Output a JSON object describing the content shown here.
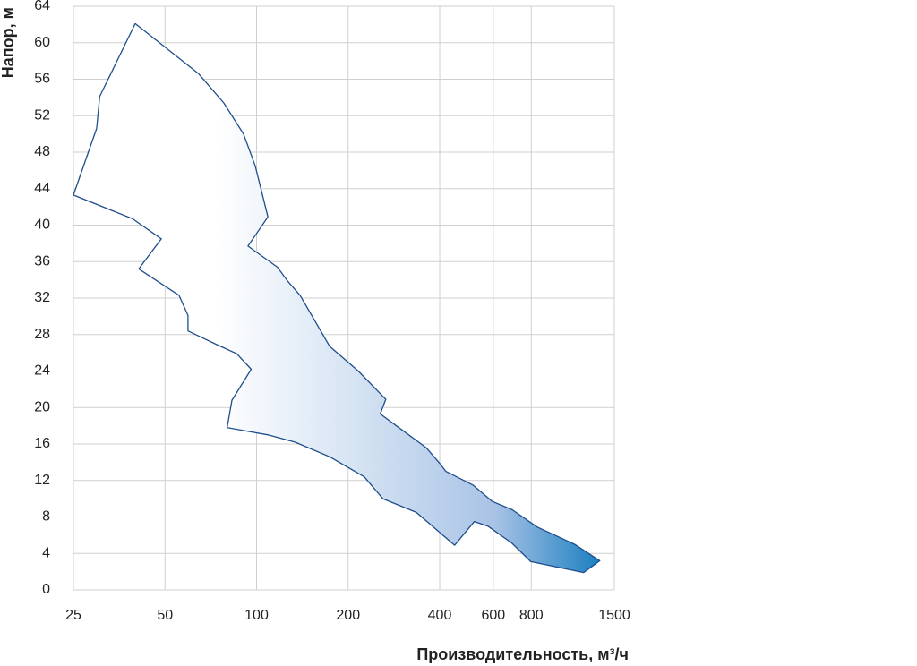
{
  "chart_data": {
    "type": "area",
    "x_label": "Производительность, м³/ч",
    "y_label": "Напор, м",
    "xscale": "log",
    "xlim": [
      25,
      1500
    ],
    "xticks": [
      25,
      50,
      100,
      200,
      400,
      600,
      800,
      1500
    ],
    "ylim": [
      0,
      64
    ],
    "yticks": [
      0,
      4,
      8,
      12,
      16,
      20,
      24,
      28,
      32,
      36,
      40,
      44,
      48,
      52,
      56,
      60,
      64
    ],
    "grid": true,
    "color": "#1b7fc0",
    "x": [
      25,
      29.8,
      30.5,
      39.9,
      64.5,
      78,
      90.6,
      99,
      109,
      93.7,
      117,
      127,
      139,
      174,
      216,
      266,
      255,
      299,
      361,
      402,
      419,
      514,
      596,
      692,
      836,
      1111,
      1344,
      1190,
      797,
      692,
      576,
      520,
      448,
      335,
      260,
      226,
      174,
      134,
      109,
      80,
      83,
      96,
      86,
      74,
      59.5,
      59.5,
      55.6,
      41,
      48.6,
      39.1
    ],
    "values": [
      43.3,
      50.6,
      54.1,
      62.1,
      56.6,
      53.4,
      50,
      46.5,
      40.9,
      37.7,
      35.4,
      33.8,
      32.3,
      26.7,
      24,
      20.9,
      19.3,
      17.6,
      15.6,
      13.8,
      13,
      11.5,
      9.7,
      8.8,
      6.9,
      5,
      3.2,
      1.9,
      3.1,
      5.1,
      7,
      7.5,
      4.9,
      8.5,
      10,
      12.4,
      14.6,
      16.2,
      17,
      17.8,
      20.8,
      24.2,
      25.9,
      26.9,
      28.4,
      30.1,
      32.3,
      35.2,
      38.5,
      40.7
    ]
  }
}
